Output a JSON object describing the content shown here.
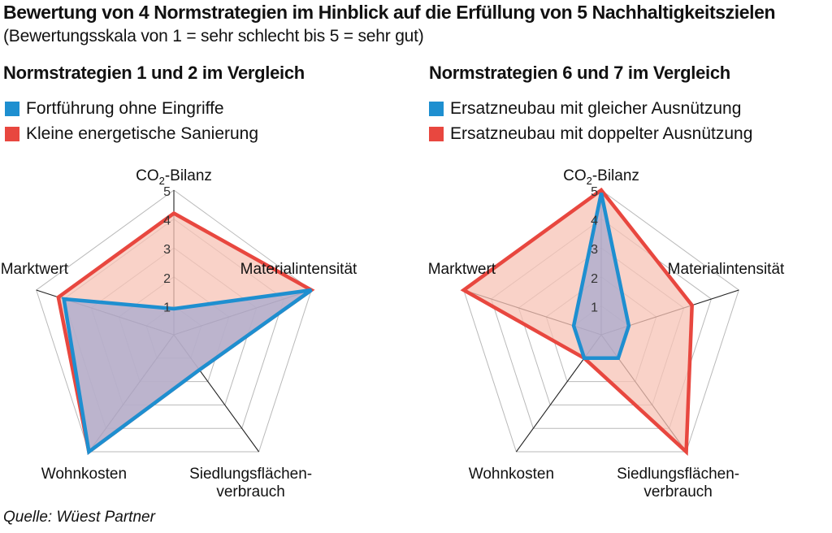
{
  "header": {
    "title": "Bewertung von 4 Normstrategien im Hinblick auf die Erfüllung von 5 Nachhaltigkeitszielen",
    "subtitle": "(Bewertungsskala von 1 = sehr schlecht bis 5 = sehr gut)"
  },
  "source": "Quelle: Wüest Partner",
  "colors": {
    "blue": "#1e8fd0",
    "red": "#e8473f",
    "red_fill": "#f7c3b6",
    "blue_fill": "#a7a9cf"
  },
  "chart_data": [
    {
      "type": "radar",
      "title": "Normstrategien 1 und 2 im Vergleich",
      "axes": [
        "CO2-Bilanz",
        "Materialintensität",
        "Siedlungsflächenverbrauch",
        "Wohnkosten",
        "Marktwert"
      ],
      "axis_labels": {
        "co2_main": "CO",
        "co2_sub": "2",
        "co2_rest": "-Bilanz",
        "material": "Materialintensität",
        "siedlung_1": "Siedlungsflächen-",
        "siedlung_2": "verbrauch",
        "wohnkosten": "Wohnkosten",
        "marktwert": "Marktwert"
      },
      "scale": {
        "min": 0,
        "max": 5,
        "ticks": [
          "1",
          "2",
          "3",
          "4",
          "5"
        ]
      },
      "series": [
        {
          "name": "Fortführung ohne Eingriffe",
          "color": "#1e8fd0",
          "values": [
            0.9,
            5,
            1.5,
            5,
            4
          ]
        },
        {
          "name": "Kleine energetische Sanierung",
          "color": "#e8473f",
          "values": [
            4.2,
            5,
            1.5,
            5,
            4.2
          ]
        }
      ],
      "draw_order": [
        1,
        0
      ],
      "grid": true,
      "legend": "top-left"
    },
    {
      "type": "radar",
      "title": "Normstrategien 6 und 7 im Vergleich",
      "axes": [
        "CO2-Bilanz",
        "Materialintensität",
        "Siedlungsflächenverbrauch",
        "Wohnkosten",
        "Marktwert"
      ],
      "axis_labels": {
        "co2_main": "CO",
        "co2_sub": "2",
        "co2_rest": "-Bilanz",
        "material": "Materialintensität",
        "siedlung_1": "Siedlungsflächen-",
        "siedlung_2": "verbrauch",
        "wohnkosten": "Wohnkosten",
        "marktwert": "Marktwert"
      },
      "scale": {
        "min": 0,
        "max": 5,
        "ticks": [
          "1",
          "2",
          "3",
          "4",
          "5"
        ]
      },
      "series": [
        {
          "name": "Ersatzneubau mit gleicher Ausnützung",
          "color": "#1e8fd0",
          "values": [
            4.9,
            1.0,
            1.0,
            1.0,
            1.0
          ]
        },
        {
          "name": "Ersatzneubau mit doppelter Ausnützung",
          "color": "#e8473f",
          "values": [
            5,
            3.3,
            5,
            1.0,
            5
          ]
        }
      ],
      "draw_order": [
        1,
        0
      ],
      "grid": true,
      "legend": "top-left"
    }
  ]
}
